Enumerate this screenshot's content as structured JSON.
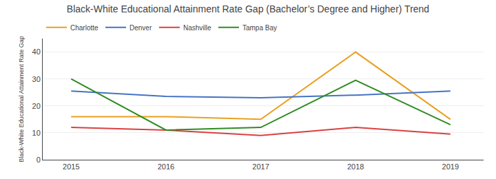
{
  "chart_data": {
    "type": "line",
    "title": "Black-White Educational Attainment Rate Gap (Bachelor’s Degree and Higher) Trend",
    "y_label": "Black-White Educational Attainment Rate Gap",
    "x": [
      2015,
      2016,
      2017,
      2018,
      2019
    ],
    "series": [
      {
        "name": "Charlotte",
        "color": "#E8A020",
        "values": [
          16,
          16,
          15,
          40,
          15
        ]
      },
      {
        "name": "Denver",
        "color": "#4472C4",
        "values": [
          25.5,
          23.5,
          23,
          24,
          25.5
        ]
      },
      {
        "name": "Nashville",
        "color": "#D94040",
        "values": [
          12,
          11,
          9,
          12,
          9.5
        ]
      },
      {
        "name": "Tampa Bay",
        "color": "#2E8B22",
        "values": [
          30,
          11,
          12,
          29.5,
          13
        ]
      }
    ],
    "xlim": [
      2014.7,
      2019.35
    ],
    "xticks": [
      2015,
      2016,
      2017,
      2018,
      2019
    ],
    "ylim": [
      0,
      45
    ],
    "yticks": [
      0,
      10,
      20,
      30,
      40
    ],
    "grid": true,
    "legend": "upper left"
  }
}
